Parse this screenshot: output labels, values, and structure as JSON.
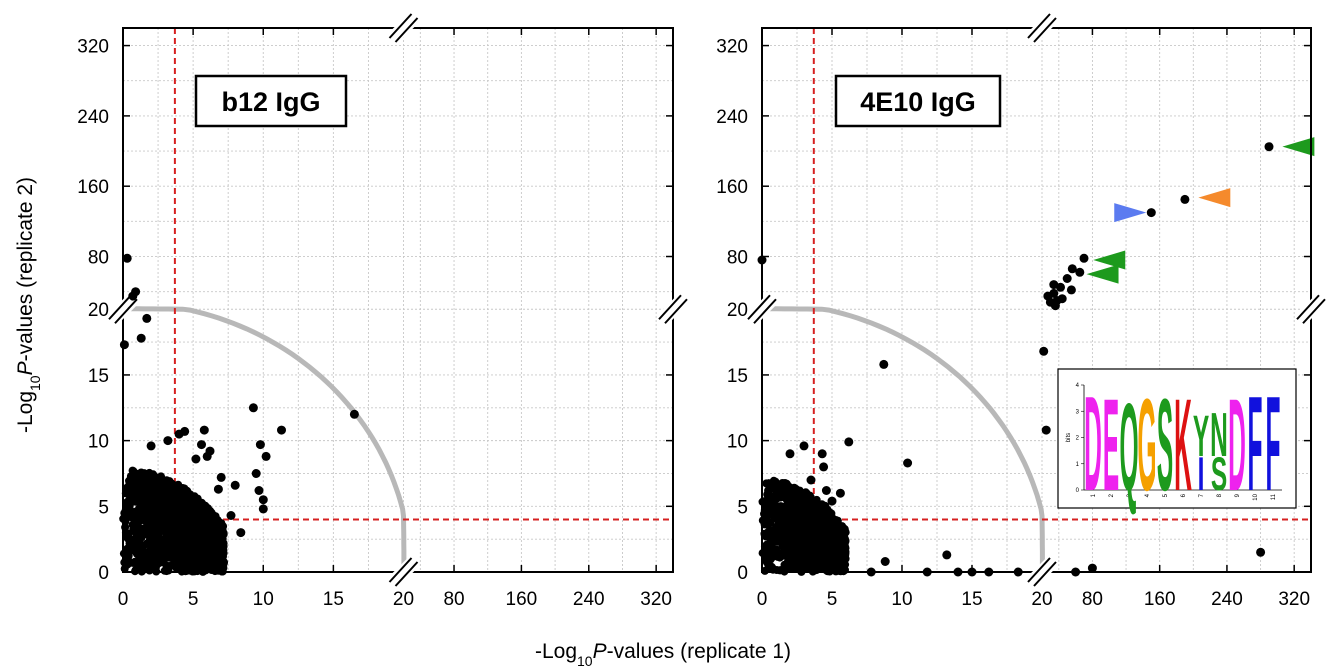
{
  "figure": {
    "xlabel_prefix": "-Log",
    "xlabel_sub": "10",
    "xlabel_var": "P",
    "xlabel_suffix": "-values (replicate 1)",
    "ylabel_prefix": "-Log",
    "ylabel_sub": "10",
    "ylabel_var": "P",
    "ylabel_suffix": "-values (replicate 2)"
  },
  "chart_data": [
    {
      "type": "scatter",
      "title": "b12 IgG",
      "x_ticks": [
        "0",
        "5",
        "10",
        "15",
        "20",
        "80",
        "160",
        "240",
        "320"
      ],
      "y_ticks": [
        "0",
        "5",
        "10",
        "15",
        "20",
        "80",
        "160",
        "240",
        "320"
      ],
      "axis_break": "20",
      "xlim": [
        0,
        340
      ],
      "ylim": [
        0,
        340
      ],
      "threshold_x": 3.7,
      "threshold_y": 4,
      "arc_radius": 20.5,
      "grid": true,
      "points": [
        [
          0.1,
          17.3
        ],
        [
          0.3,
          78
        ],
        [
          0.7,
          35
        ],
        [
          0.9,
          40
        ],
        [
          1.7,
          19.3
        ],
        [
          1.3,
          17.8
        ],
        [
          9.3,
          12.5
        ],
        [
          16.5,
          12
        ],
        [
          11.3,
          10.8
        ],
        [
          9.8,
          9.7
        ],
        [
          10.2,
          8.8
        ],
        [
          9.5,
          7.5
        ],
        [
          9.7,
          6.2
        ],
        [
          10.0,
          5.5
        ],
        [
          10.0,
          4.8
        ],
        [
          8.4,
          3.0
        ],
        [
          4.0,
          10.5
        ],
        [
          3.2,
          10.0
        ],
        [
          2.0,
          9.6
        ],
        [
          4.4,
          10.7
        ],
        [
          5.6,
          9.7
        ],
        [
          6.0,
          8.8
        ],
        [
          5.2,
          8.6
        ],
        [
          7.0,
          7.2
        ],
        [
          7.7,
          4.3
        ],
        [
          6.8,
          6.3
        ],
        [
          8.0,
          6.6
        ],
        [
          5.8,
          10.8
        ],
        [
          6.2,
          9.2
        ]
      ],
      "cluster": {
        "x_max": 7.2,
        "y_max": 7.8,
        "count": 1400
      }
    },
    {
      "type": "scatter",
      "title": "4E10 IgG",
      "x_ticks": [
        "0",
        "5",
        "10",
        "15",
        "20",
        "80",
        "160",
        "240",
        "320"
      ],
      "y_ticks": [
        "0",
        "5",
        "10",
        "15",
        "20",
        "80",
        "160",
        "240",
        "320"
      ],
      "axis_break": "20",
      "xlim": [
        0,
        340
      ],
      "ylim": [
        0,
        340
      ],
      "threshold_x": 3.7,
      "threshold_y": 4,
      "arc_radius": 20.5,
      "grid": true,
      "points": [
        [
          0.0,
          76
        ],
        [
          8.7,
          15.8
        ],
        [
          10.4,
          8.3
        ],
        [
          11.8,
          0.0
        ],
        [
          14.0,
          0.0
        ],
        [
          15.0,
          0.0
        ],
        [
          16.2,
          0.0
        ],
        [
          13.2,
          1.3
        ],
        [
          18.3,
          0.0
        ],
        [
          7.8,
          0.0
        ],
        [
          8.8,
          0.8
        ],
        [
          22,
          16.8
        ],
        [
          25,
          10.8
        ],
        [
          27,
          35
        ],
        [
          30,
          28
        ],
        [
          34,
          38
        ],
        [
          36,
          24
        ],
        [
          38,
          30
        ],
        [
          42,
          45
        ],
        [
          50,
          55
        ],
        [
          55,
          42
        ],
        [
          65,
          62
        ],
        [
          70,
          78
        ],
        [
          56,
          66
        ],
        [
          34,
          48
        ],
        [
          44,
          32
        ],
        [
          150,
          130
        ],
        [
          190,
          145
        ],
        [
          290,
          205
        ],
        [
          280,
          1.5
        ],
        [
          60,
          0
        ],
        [
          80,
          0.3
        ],
        [
          4.3,
          9.0
        ],
        [
          4.4,
          8.0
        ],
        [
          3.0,
          9.6
        ],
        [
          2.0,
          9.0
        ],
        [
          4.6,
          6.2
        ],
        [
          4.5,
          5.0
        ],
        [
          5.0,
          5.4
        ],
        [
          6.2,
          9.9
        ],
        [
          5.6,
          6.0
        ],
        [
          3.5,
          7.0
        ]
      ],
      "cluster": {
        "x_max": 6.0,
        "y_max": 7.0,
        "count": 1000
      },
      "markers": [
        {
          "x": 125,
          "y": 130,
          "dir": "right",
          "color": "#5b7bf0"
        },
        {
          "x": 225,
          "y": 147,
          "dir": "left",
          "color": "#f58a2c"
        },
        {
          "x": 325,
          "y": 205,
          "dir": "left",
          "color": "#1d9a1d"
        },
        {
          "x": 100,
          "y": 76,
          "dir": "left",
          "color": "#1d9a1d"
        },
        {
          "x": 92,
          "y": 60,
          "dir": "left",
          "color": "#1d9a1d"
        }
      ],
      "logo": {
        "ylabel": "bits",
        "y_ticks": [
          "0",
          "1",
          "2",
          "3",
          "4"
        ],
        "positions": [
          "1",
          "2",
          "3",
          "4",
          "5",
          "6",
          "7",
          "8",
          "9",
          "10",
          "11"
        ],
        "letters": [
          {
            "pos": 1,
            "char": "D",
            "color": "#ee22ee",
            "bottom": 0.0,
            "height": 3.7
          },
          {
            "pos": 2,
            "char": "E",
            "color": "#ee22ee",
            "bottom": 0.0,
            "height": 3.6
          },
          {
            "pos": 3,
            "char": "Q",
            "color": "#1d9a1d",
            "bottom": 0.0,
            "height": 3.4
          },
          {
            "pos": 4,
            "char": "G",
            "color": "#f5a000",
            "bottom": 0.0,
            "height": 3.6
          },
          {
            "pos": 5,
            "char": "S",
            "color": "#1d9a1d",
            "bottom": 0.0,
            "height": 3.6
          },
          {
            "pos": 6,
            "char": "K",
            "color": "#dd1111",
            "bottom": 0.0,
            "height": 3.6
          },
          {
            "pos": 7,
            "char": "I",
            "color": "#1111dd",
            "bottom": 0.0,
            "height": 1.3
          },
          {
            "pos": 7,
            "char": "Y",
            "color": "#1d9a1d",
            "bottom": 1.3,
            "height": 1.6
          },
          {
            "pos": 8,
            "char": "S",
            "color": "#1d9a1d",
            "bottom": 0.0,
            "height": 1.3
          },
          {
            "pos": 8,
            "char": "N",
            "color": "#1d9a1d",
            "bottom": 1.3,
            "height": 1.7
          },
          {
            "pos": 9,
            "char": "D",
            "color": "#ee22ee",
            "bottom": 0.0,
            "height": 3.6
          },
          {
            "pos": 10,
            "char": "F",
            "color": "#1111dd",
            "bottom": 0.0,
            "height": 3.7
          },
          {
            "pos": 11,
            "char": "F",
            "color": "#1111dd",
            "bottom": 0.0,
            "height": 3.7
          }
        ]
      }
    }
  ]
}
